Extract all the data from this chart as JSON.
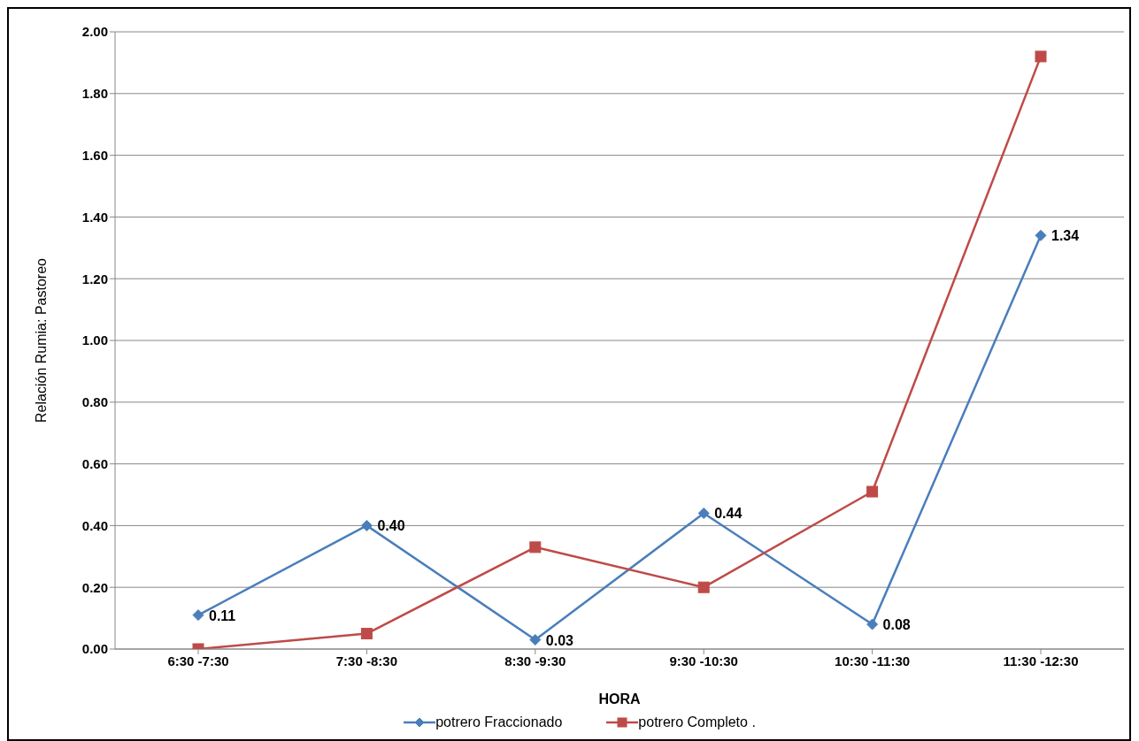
{
  "chart_data": {
    "type": "line",
    "xlabel": "HORA",
    "ylabel": "Relación Rumia: Pastoreo",
    "categories": [
      "6:30 -7:30",
      "7:30 -8:30",
      "8:30 -9:30",
      "9:30 -10:30",
      "10:30 -11:30",
      "11:30 -12:30"
    ],
    "series": [
      {
        "name": "potrero Fraccionado",
        "color": "#4a7ebb",
        "marker": "diamond",
        "values": [
          0.11,
          0.4,
          0.03,
          0.44,
          0.08,
          1.34
        ],
        "value_labels": [
          "0.11",
          "0.40",
          "0.03",
          "0.44",
          "0.08",
          "1.34"
        ]
      },
      {
        "name": "potrero Completo .",
        "color": "#be4b48",
        "marker": "square",
        "values": [
          0.0,
          0.05,
          0.33,
          0.2,
          0.51,
          1.92
        ]
      }
    ],
    "ylim": [
      0,
      2
    ],
    "yticks": [
      {
        "value": 0,
        "label": "0.00"
      },
      {
        "value": 0.2,
        "label": "0.20"
      },
      {
        "value": 0.4,
        "label": "0.40"
      },
      {
        "value": 0.6,
        "label": "0.60"
      },
      {
        "value": 0.8,
        "label": "0.80"
      },
      {
        "value": 1,
        "label": "1.00"
      },
      {
        "value": 1.2,
        "label": "1.20"
      },
      {
        "value": 1.4,
        "label": "1.40"
      },
      {
        "value": 1.6,
        "label": "1.60"
      },
      {
        "value": 1.8,
        "label": "1.80"
      },
      {
        "value": 2,
        "label": "2.00"
      }
    ],
    "grid": "y",
    "legend": "bottom"
  }
}
